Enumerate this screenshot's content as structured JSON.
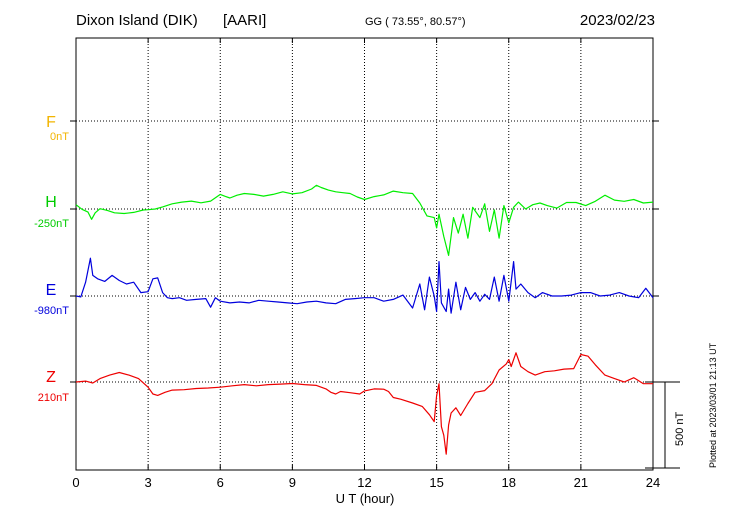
{
  "header": {
    "station": "Dixon Island (DIK)",
    "institute": "[AARI]",
    "coords": "GG ( 73.55°,  80.57°)",
    "date": "2023/02/23"
  },
  "side_note": "Plotted at 2023/03/01 21:13 UT",
  "scale_label": "500 nT",
  "chart_data": {
    "type": "line",
    "xlabel": "U T (hour)",
    "xlim": [
      0,
      24
    ],
    "x_ticks": [
      "0",
      "3",
      "6",
      "9",
      "12",
      "15",
      "18",
      "21",
      "24"
    ],
    "grid": true,
    "scale_bar_nT": 500,
    "components": [
      {
        "name": "F",
        "baseline_label": "0nT",
        "color": "#f2b400",
        "baseline_nT": 0,
        "x": [],
        "values": []
      },
      {
        "name": "H",
        "baseline_label": "-250nT",
        "color": "#00ee00",
        "baseline_nT": -250,
        "x": [
          0,
          0.25,
          0.5,
          0.65,
          0.8,
          1.0,
          1.3,
          1.6,
          2.0,
          2.4,
          2.8,
          3.0,
          3.3,
          3.6,
          4.0,
          4.4,
          4.8,
          5.2,
          5.6,
          6.0,
          6.2,
          6.4,
          6.7,
          7.0,
          7.4,
          7.8,
          8.2,
          8.6,
          9.0,
          9.4,
          9.8,
          10.0,
          10.2,
          10.5,
          10.8,
          11.1,
          11.4,
          11.7,
          12.0,
          12.4,
          12.8,
          13.2,
          13.6,
          14.0,
          14.3,
          14.6,
          14.9,
          15.0,
          15.1,
          15.3,
          15.5,
          15.7,
          15.9,
          16.1,
          16.3,
          16.5,
          16.8,
          17.0,
          17.2,
          17.4,
          17.6,
          17.8,
          18.0,
          18.2,
          18.4,
          18.7,
          19.0,
          19.3,
          19.6,
          20.0,
          20.4,
          20.8,
          21.2,
          21.6,
          22.0,
          22.4,
          22.8,
          23.2,
          23.6,
          24.0
        ],
        "values": [
          -225,
          -252,
          -268,
          -310,
          -272,
          -248,
          -258,
          -272,
          -276,
          -270,
          -256,
          -254,
          -250,
          -238,
          -220,
          -210,
          -204,
          -214,
          -204,
          -165,
          -176,
          -186,
          -170,
          -160,
          -165,
          -175,
          -165,
          -150,
          -162,
          -155,
          -134,
          -112,
          -125,
          -140,
          -150,
          -155,
          -160,
          -180,
          -195,
          -178,
          -168,
          -146,
          -155,
          -160,
          -215,
          -290,
          -300,
          -360,
          -280,
          -410,
          -520,
          -300,
          -390,
          -280,
          -420,
          -240,
          -300,
          -220,
          -380,
          -255,
          -420,
          -230,
          -330,
          -240,
          -210,
          -250,
          -225,
          -215,
          -230,
          -245,
          -212,
          -212,
          -230,
          -205,
          -170,
          -198,
          -205,
          -195,
          -215,
          -210
        ]
      },
      {
        "name": "E",
        "baseline_label": "-980nT",
        "color": "#0000dd",
        "baseline_nT": -980,
        "x": [
          0,
          0.2,
          0.4,
          0.6,
          0.7,
          0.9,
          1.2,
          1.5,
          1.8,
          2.1,
          2.4,
          2.7,
          3.0,
          3.2,
          3.4,
          3.6,
          3.8,
          4.0,
          4.3,
          4.6,
          5.0,
          5.4,
          5.6,
          5.8,
          6.0,
          6.4,
          6.8,
          7.2,
          7.6,
          8.0,
          8.4,
          8.8,
          9.2,
          9.6,
          10.0,
          10.4,
          10.8,
          11.2,
          11.6,
          12.0,
          12.4,
          12.8,
          13.2,
          13.6,
          14.0,
          14.3,
          14.5,
          14.7,
          14.9,
          15.0,
          15.1,
          15.2,
          15.4,
          15.5,
          15.6,
          15.8,
          16.0,
          16.2,
          16.4,
          16.6,
          16.8,
          17.0,
          17.2,
          17.4,
          17.6,
          17.8,
          18.0,
          18.2,
          18.3,
          18.5,
          18.8,
          19.1,
          19.4,
          19.8,
          20.2,
          20.6,
          21.0,
          21.4,
          21.8,
          22.2,
          22.6,
          23.0,
          23.4,
          23.7,
          24.0
        ],
        "values": [
          -980,
          -985,
          -900,
          -760,
          -860,
          -880,
          -895,
          -860,
          -890,
          -910,
          -900,
          -960,
          -955,
          -880,
          -875,
          -960,
          -990,
          -995,
          -990,
          -1005,
          -1000,
          -995,
          -1045,
          -990,
          -1010,
          -1020,
          -1015,
          -1020,
          -1005,
          -1010,
          -1015,
          -1020,
          -1025,
          -1015,
          -1010,
          -1020,
          -1025,
          -1000,
          -995,
          -990,
          -990,
          -1010,
          -1000,
          -975,
          -1050,
          -910,
          -1060,
          -870,
          -980,
          -1070,
          -780,
          -1020,
          -1070,
          -940,
          -1080,
          -900,
          -1060,
          -930,
          -1000,
          -960,
          -1010,
          -970,
          -1000,
          -870,
          -1010,
          -860,
          -1010,
          -780,
          -940,
          -910,
          -960,
          -990,
          -960,
          -980,
          -980,
          -975,
          -960,
          -960,
          -980,
          -975,
          -960,
          -980,
          -990,
          -935,
          -990
        ]
      },
      {
        "name": "Z",
        "baseline_label": "210nT",
        "color": "#ee0000",
        "baseline_nT": 210,
        "x": [
          0,
          0.4,
          0.7,
          1.0,
          1.4,
          1.8,
          2.2,
          2.6,
          3.0,
          3.2,
          3.4,
          3.7,
          4.0,
          4.5,
          5.0,
          5.5,
          6.0,
          6.5,
          7.0,
          7.5,
          8.0,
          8.5,
          9.0,
          9.5,
          10.0,
          10.4,
          10.6,
          10.8,
          11.0,
          11.4,
          11.8,
          12.0,
          12.4,
          12.8,
          13.0,
          13.2,
          13.5,
          14.0,
          14.4,
          14.7,
          14.9,
          15.0,
          15.1,
          15.2,
          15.3,
          15.4,
          15.5,
          15.6,
          15.8,
          16.0,
          16.3,
          16.6,
          17.0,
          17.3,
          17.6,
          17.9,
          18.0,
          18.1,
          18.3,
          18.5,
          18.8,
          19.1,
          19.5,
          19.9,
          20.3,
          20.7,
          21.0,
          21.3,
          21.6,
          22.0,
          22.4,
          22.8,
          23.2,
          23.6,
          24.0
        ],
        "values": [
          210,
          215,
          204,
          230,
          250,
          265,
          250,
          230,
          180,
          140,
          132,
          150,
          163,
          165,
          172,
          175,
          180,
          188,
          195,
          188,
          195,
          198,
          201,
          195,
          190,
          170,
          150,
          140,
          155,
          148,
          140,
          158,
          170,
          168,
          155,
          120,
          110,
          88,
          68,
          20,
          -20,
          130,
          200,
          -50,
          -100,
          -210,
          -40,
          30,
          60,
          15,
          85,
          150,
          160,
          200,
          280,
          315,
          340,
          300,
          380,
          300,
          270,
          250,
          270,
          275,
          285,
          288,
          370,
          360,
          310,
          250,
          230,
          210,
          235,
          200,
          200
        ]
      }
    ]
  }
}
